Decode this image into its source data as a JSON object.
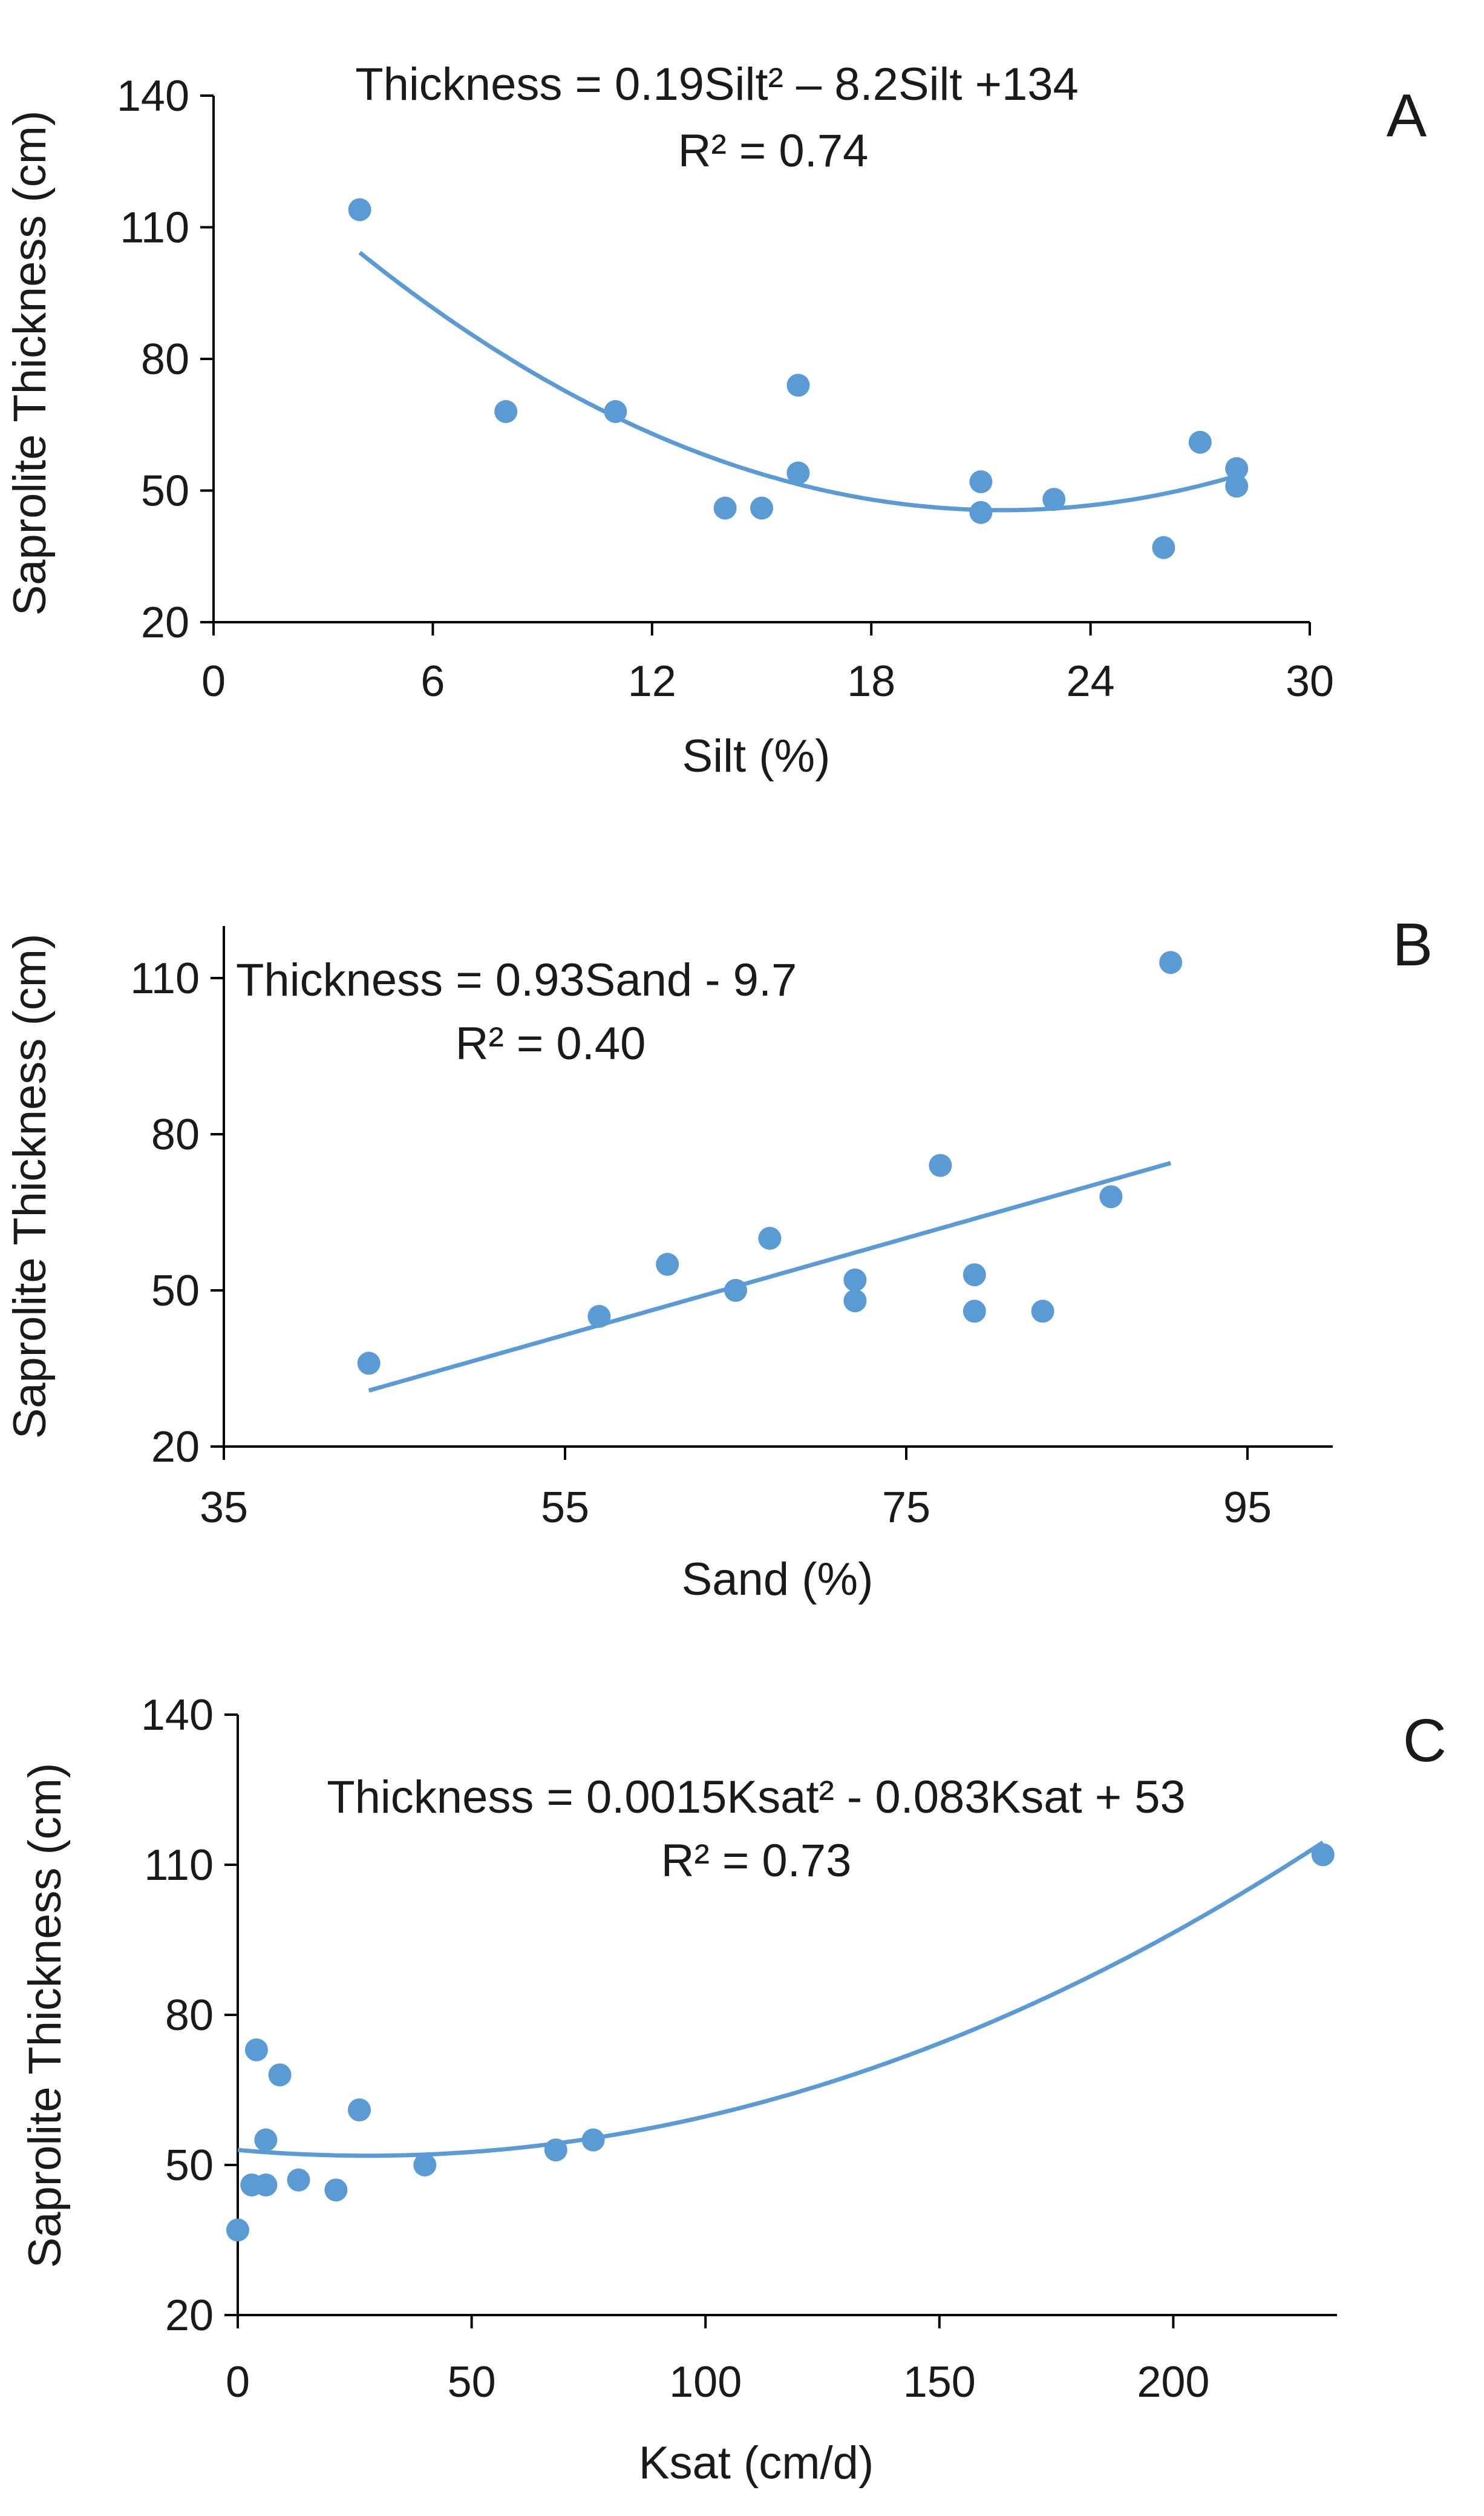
{
  "colors": {
    "series": "#5b9bd5",
    "axis": "#000000",
    "text": "#1a1a1a"
  },
  "chart_data": [
    {
      "type": "scatter",
      "panel_label": "A",
      "equation": "Thickness = 0.19Silt² – 8.2Silt +134",
      "r2": "R² = 0.74",
      "xlabel": "Silt (%)",
      "ylabel": "Saprolite Thickness (cm)",
      "xlim": [
        0,
        30
      ],
      "ylim": [
        20,
        140
      ],
      "xticks": [
        0,
        6,
        12,
        18,
        24,
        30
      ],
      "yticks": [
        20,
        50,
        80,
        110,
        140
      ],
      "grid": false,
      "points": [
        {
          "x": 4,
          "y": 114
        },
        {
          "x": 8,
          "y": 68
        },
        {
          "x": 11,
          "y": 68
        },
        {
          "x": 14,
          "y": 46
        },
        {
          "x": 15,
          "y": 46
        },
        {
          "x": 16,
          "y": 74
        },
        {
          "x": 16,
          "y": 54
        },
        {
          "x": 21,
          "y": 52
        },
        {
          "x": 21,
          "y": 45
        },
        {
          "x": 23,
          "y": 48
        },
        {
          "x": 26,
          "y": 37
        },
        {
          "x": 27,
          "y": 61
        },
        {
          "x": 28,
          "y": 55
        },
        {
          "x": 28,
          "y": 51
        }
      ],
      "fit": {
        "kind": "quadratic",
        "coefficients": [
          134,
          -8.2,
          0.19
        ],
        "x_range": [
          4,
          28
        ]
      }
    },
    {
      "type": "scatter",
      "panel_label": "B",
      "equation": "Thickness = 0.93Sand - 9.7",
      "r2": "R² = 0.40",
      "xlabel": "Sand (%)",
      "ylabel": "Saprolite Thickness (cm)",
      "xlim": [
        35,
        100
      ],
      "ylim": [
        20,
        120
      ],
      "xticks": [
        35,
        55,
        75,
        95
      ],
      "yticks": [
        20,
        50,
        80,
        110
      ],
      "grid": false,
      "points": [
        {
          "x": 43.5,
          "y": 36
        },
        {
          "x": 57,
          "y": 45
        },
        {
          "x": 61,
          "y": 55
        },
        {
          "x": 65,
          "y": 50
        },
        {
          "x": 67,
          "y": 60
        },
        {
          "x": 72,
          "y": 52
        },
        {
          "x": 72,
          "y": 48
        },
        {
          "x": 77,
          "y": 74
        },
        {
          "x": 79,
          "y": 53
        },
        {
          "x": 79,
          "y": 46
        },
        {
          "x": 83,
          "y": 46
        },
        {
          "x": 87,
          "y": 68
        },
        {
          "x": 90.5,
          "y": 113
        }
      ],
      "fit": {
        "kind": "linear",
        "coefficients": [
          -9.7,
          0.93
        ],
        "x_range": [
          43.5,
          90.5
        ]
      }
    },
    {
      "type": "scatter",
      "panel_label": "C",
      "equation": "Thickness = 0.0015Ksat² - 0.083Ksat + 53",
      "r2": "R² = 0.73",
      "xlabel": "Ksat (cm/d)",
      "ylabel": "Saprolite Thickness (cm)",
      "xlim": [
        0,
        235
      ],
      "ylim": [
        20,
        140
      ],
      "xticks": [
        0,
        50,
        100,
        150,
        200
      ],
      "yticks": [
        20,
        50,
        80,
        110,
        140
      ],
      "grid": false,
      "points": [
        {
          "x": 0,
          "y": 37
        },
        {
          "x": 3,
          "y": 46
        },
        {
          "x": 4,
          "y": 73
        },
        {
          "x": 6,
          "y": 46
        },
        {
          "x": 6,
          "y": 55
        },
        {
          "x": 9,
          "y": 68
        },
        {
          "x": 13,
          "y": 47
        },
        {
          "x": 21,
          "y": 45
        },
        {
          "x": 26,
          "y": 61
        },
        {
          "x": 40,
          "y": 50
        },
        {
          "x": 68,
          "y": 53
        },
        {
          "x": 76,
          "y": 55
        },
        {
          "x": 232,
          "y": 112
        }
      ],
      "fit": {
        "kind": "quadratic",
        "coefficients": [
          53,
          -0.083,
          0.0015
        ],
        "x_range": [
          0,
          232
        ]
      }
    }
  ]
}
